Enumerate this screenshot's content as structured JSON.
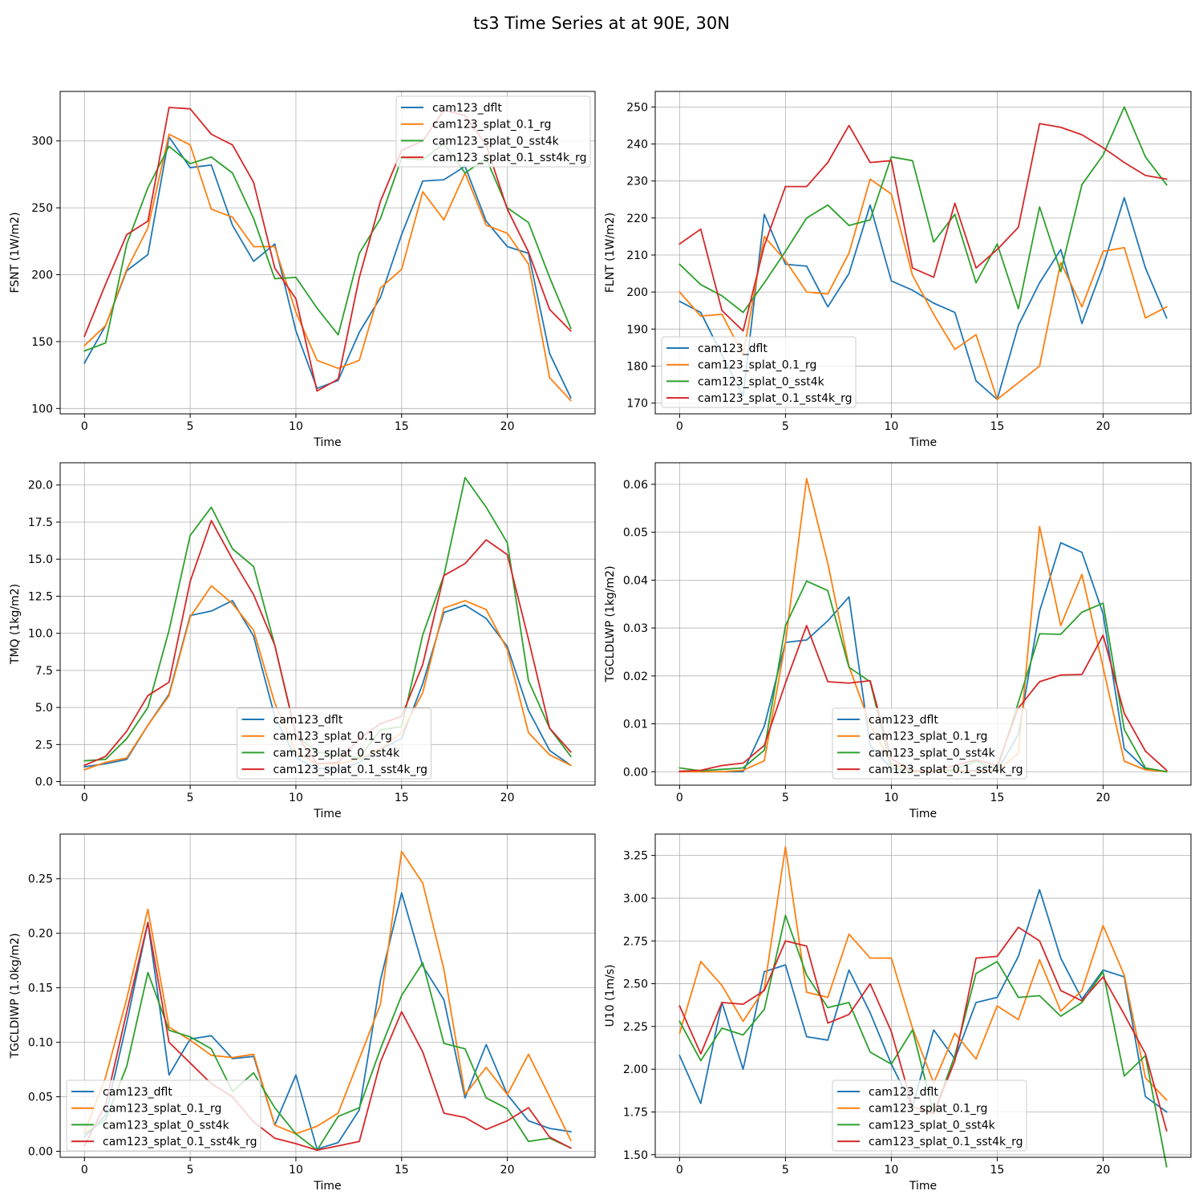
{
  "suptitle": "ts3 Time Series at at 90E, 30N",
  "series_names": [
    "cam123_dflt",
    "cam123_splat_0.1_rg",
    "cam123_splat_0_sst4k",
    "cam123_splat_0.1_sst4k_rg"
  ],
  "colors": [
    "#1f77b4",
    "#ff7f0e",
    "#2ca02c",
    "#d62728"
  ],
  "chart_data": [
    {
      "type": "line",
      "id": "fsnt",
      "title": "",
      "xlabel": "Time",
      "ylabel": "FSNT (1W/m2)",
      "xlim": [
        -1.15,
        24.15
      ],
      "ylim": [
        337,
        96
      ],
      "xticks": [
        0,
        5,
        10,
        15,
        20
      ],
      "yticks": [
        100,
        150,
        200,
        250,
        300
      ],
      "ytick_labels": [
        "100",
        "150",
        "200",
        "250",
        "300"
      ],
      "legend_loc": "upper right",
      "x": [
        0,
        1,
        2,
        3,
        4,
        5,
        6,
        7,
        8,
        9,
        10,
        11,
        12,
        13,
        14,
        15,
        16,
        17,
        18,
        19,
        20,
        21,
        22,
        23
      ],
      "series": [
        {
          "name": "cam123_dflt",
          "values": [
            134,
            162,
            203,
            215,
            303,
            280,
            282,
            237,
            210,
            223,
            158,
            115,
            121,
            157,
            183,
            230,
            270,
            271,
            281,
            240,
            221,
            216,
            141,
            108
          ]
        },
        {
          "name": "cam123_splat_0.1_rg",
          "values": [
            147,
            162,
            204,
            235,
            305,
            297,
            249,
            243,
            221,
            221,
            172,
            136,
            130,
            136,
            190,
            204,
            262,
            241,
            276,
            237,
            231,
            208,
            123,
            106
          ]
        },
        {
          "name": "cam123_splat_0_sst4k",
          "values": [
            143,
            149,
            223,
            265,
            296,
            283,
            288,
            276,
            242,
            197,
            198,
            175,
            155,
            216,
            242,
            287,
            286,
            298,
            276,
            287,
            250,
            239,
            198,
            160
          ]
        },
        {
          "name": "cam123_splat_0.1_sst4k_rg",
          "values": [
            154,
            193,
            230,
            240,
            325,
            324,
            305,
            297,
            269,
            205,
            182,
            113,
            122,
            198,
            255,
            293,
            300,
            323,
            319,
            297,
            249,
            217,
            174,
            158
          ]
        }
      ]
    },
    {
      "type": "line",
      "id": "flnt",
      "title": "",
      "xlabel": "Time",
      "ylabel": "FLNT (1W/m2)",
      "xlim": [
        -1.15,
        24.15
      ],
      "ylim": [
        254.2,
        167.1
      ],
      "xticks": [
        0,
        5,
        10,
        15,
        20
      ],
      "yticks": [
        170,
        180,
        190,
        200,
        210,
        220,
        230,
        240,
        250
      ],
      "ytick_labels": [
        "170",
        "180",
        "190",
        "200",
        "210",
        "220",
        "230",
        "240",
        "250"
      ],
      "legend_loc": "lower left",
      "x": [
        0,
        1,
        2,
        3,
        4,
        5,
        6,
        7,
        8,
        9,
        10,
        11,
        12,
        13,
        14,
        15,
        16,
        17,
        18,
        19,
        20,
        21,
        22,
        23
      ],
      "series": [
        {
          "name": "cam123_dflt",
          "values": [
            197.5,
            194.5,
            183,
            172,
            221,
            207.5,
            207,
            196,
            205,
            223.5,
            203,
            200.5,
            197,
            194.5,
            176,
            171,
            191,
            202.5,
            211.5,
            191.5,
            207,
            225.5,
            206.5,
            193
          ]
        },
        {
          "name": "cam123_splat_0.1_rg",
          "values": [
            200,
            193.5,
            194,
            183,
            215,
            208.5,
            200,
            199.5,
            210.5,
            230.5,
            226.5,
            204.5,
            194,
            184.5,
            188.5,
            171,
            175.5,
            180,
            208,
            196,
            211,
            212,
            193,
            196
          ]
        },
        {
          "name": "cam123_splat_0_sst4k",
          "values": [
            207.5,
            202,
            199,
            194.5,
            202.5,
            211,
            220,
            223.5,
            218,
            219.5,
            236.5,
            235.5,
            213.5,
            221,
            202.5,
            213,
            195.5,
            223,
            205.5,
            229,
            237,
            250,
            236.5,
            229
          ]
        },
        {
          "name": "cam123_splat_0.1_sst4k_rg",
          "values": [
            213,
            217,
            195,
            189.5,
            212.5,
            228.5,
            228.5,
            235,
            245,
            235,
            235.5,
            206.5,
            204,
            224,
            206.5,
            211.5,
            217.5,
            245.5,
            244.5,
            242.5,
            239,
            235,
            231.5,
            230.5
          ]
        }
      ]
    },
    {
      "type": "line",
      "id": "tmq",
      "title": "",
      "xlabel": "Time",
      "ylabel": "TMQ (1kg/m2)",
      "xlim": [
        -1.15,
        24.15
      ],
      "ylim": [
        21.5,
        -0.24
      ],
      "xticks": [
        0,
        5,
        10,
        15,
        20
      ],
      "yticks": [
        0,
        2.5,
        5,
        7.5,
        10,
        12.5,
        15,
        17.5,
        20
      ],
      "ytick_labels": [
        "0.0",
        "2.5",
        "5.0",
        "7.5",
        "10.0",
        "12.5",
        "15.0",
        "17.5",
        "20.0"
      ],
      "legend_loc": "lower center",
      "x": [
        0,
        1,
        2,
        3,
        4,
        5,
        6,
        7,
        8,
        9,
        10,
        11,
        12,
        13,
        14,
        15,
        16,
        17,
        18,
        19,
        20,
        21,
        22,
        23
      ],
      "series": [
        {
          "name": "cam123_dflt",
          "values": [
            1.0,
            1.2,
            1.5,
            3.8,
            5.9,
            11.2,
            11.5,
            12.2,
            9.8,
            4.4,
            1.6,
            0.9,
            0.8,
            1.3,
            2.2,
            2.9,
            6.6,
            11.4,
            11.9,
            11.0,
            9.1,
            4.8,
            2.1,
            1.1
          ]
        },
        {
          "name": "cam123_splat_0.1_rg",
          "values": [
            0.8,
            1.3,
            1.6,
            3.8,
            5.8,
            11.1,
            13.2,
            12.0,
            10.2,
            5.3,
            2.0,
            1.2,
            1.2,
            1.5,
            2.2,
            3.3,
            6.0,
            11.7,
            12.2,
            11.6,
            8.9,
            3.3,
            1.8,
            1.1
          ]
        },
        {
          "name": "cam123_splat_0_sst4k",
          "values": [
            1.4,
            1.5,
            2.9,
            5.0,
            10.2,
            16.6,
            18.5,
            15.7,
            14.5,
            9.2,
            3.1,
            2.0,
            1.8,
            1.6,
            3.5,
            3.7,
            9.9,
            13.9,
            20.5,
            18.5,
            16.1,
            6.8,
            3.6,
            1.7
          ]
        },
        {
          "name": "cam123_splat_0.1_sst4k_rg",
          "values": [
            1.1,
            1.7,
            3.4,
            5.8,
            6.7,
            13.5,
            17.6,
            15.0,
            12.6,
            9.2,
            3.2,
            1.2,
            1.3,
            2.9,
            3.9,
            4.4,
            7.9,
            13.9,
            14.7,
            16.3,
            15.3,
            9.6,
            3.6,
            2.0
          ]
        }
      ]
    },
    {
      "type": "line",
      "id": "tgcldlwp",
      "title": "",
      "xlabel": "Time",
      "ylabel": "TGCLDLWP (1kg/m2)",
      "xlim": [
        -1.15,
        24.15
      ],
      "ylim": [
        0.0645,
        -0.0028
      ],
      "xticks": [
        0,
        5,
        10,
        15,
        20
      ],
      "yticks": [
        0,
        0.01,
        0.02,
        0.03,
        0.04,
        0.05,
        0.06
      ],
      "ytick_labels": [
        "0.00",
        "0.01",
        "0.02",
        "0.03",
        "0.04",
        "0.05",
        "0.06"
      ],
      "legend_loc": "lower center",
      "x": [
        0,
        1,
        2,
        3,
        4,
        5,
        6,
        7,
        8,
        9,
        10,
        11,
        12,
        13,
        14,
        15,
        16,
        17,
        18,
        19,
        20,
        21,
        22,
        23
      ],
      "series": [
        {
          "name": "cam123_dflt",
          "values": [
            0.0,
            0.0,
            0.0,
            0.0,
            0.0095,
            0.027,
            0.0275,
            0.0315,
            0.0365,
            0.0055,
            0.0007,
            0.0002,
            0.0,
            0.0002,
            0.0003,
            0.0002,
            0.0078,
            0.0335,
            0.0478,
            0.0458,
            0.033,
            0.0048,
            0.0006,
            0.0
          ]
        },
        {
          "name": "cam123_splat_0.1_rg",
          "values": [
            0.0,
            0.0,
            0.0,
            0.0003,
            0.0023,
            0.027,
            0.0612,
            0.0435,
            0.022,
            0.0098,
            0.0018,
            0.0,
            0.0,
            0.0003,
            0.0,
            0.0003,
            0.0038,
            0.0512,
            0.0305,
            0.0412,
            0.0218,
            0.0022,
            0.0004,
            0.0
          ]
        },
        {
          "name": "cam123_splat_0_sst4k",
          "values": [
            0.0008,
            0.0002,
            0.0005,
            0.0008,
            0.0045,
            0.0305,
            0.0398,
            0.0378,
            0.0218,
            0.0188,
            0.0007,
            0.0002,
            0.0002,
            0.0004,
            0.0022,
            0.0005,
            0.0145,
            0.0288,
            0.0287,
            0.0333,
            0.0352,
            0.0088,
            0.0008,
            0.0
          ]
        },
        {
          "name": "cam123_splat_0.1_sst4k_rg",
          "values": [
            0.0001,
            0.0003,
            0.0013,
            0.0018,
            0.0055,
            0.0185,
            0.0305,
            0.0188,
            0.0185,
            0.019,
            0.0027,
            0.0002,
            0.0001,
            0.0013,
            0.0025,
            0.0013,
            0.0133,
            0.0188,
            0.0202,
            0.0203,
            0.0285,
            0.0122,
            0.0043,
            0.0003
          ]
        }
      ]
    },
    {
      "type": "line",
      "id": "tgcldiwp",
      "title": "",
      "xlabel": "Time",
      "ylabel": "TGCLDIWP (1.0kg/m2)",
      "xlim": [
        -1.15,
        24.15
      ],
      "ylim": [
        0.291,
        -0.0055
      ],
      "xticks": [
        0,
        5,
        10,
        15,
        20
      ],
      "yticks": [
        0,
        0.05,
        0.1,
        0.15,
        0.2,
        0.25
      ],
      "ytick_labels": [
        "0.00",
        "0.05",
        "0.10",
        "0.15",
        "0.20",
        "0.25"
      ],
      "legend_loc": "lower left",
      "x": [
        0,
        1,
        2,
        3,
        4,
        5,
        6,
        7,
        8,
        9,
        10,
        11,
        12,
        13,
        14,
        15,
        16,
        17,
        18,
        19,
        20,
        21,
        22,
        23
      ],
      "series": [
        {
          "name": "cam123_dflt",
          "values": [
            0.013,
            0.033,
            0.118,
            0.21,
            0.07,
            0.103,
            0.106,
            0.085,
            0.087,
            0.024,
            0.07,
            0.002,
            0.008,
            0.038,
            0.157,
            0.237,
            0.17,
            0.139,
            0.049,
            0.098,
            0.052,
            0.028,
            0.021,
            0.018
          ]
        },
        {
          "name": "cam123_splat_0.1_rg",
          "values": [
            0.017,
            0.068,
            0.14,
            0.222,
            0.114,
            0.102,
            0.088,
            0.086,
            0.089,
            0.024,
            0.016,
            0.023,
            0.035,
            0.085,
            0.135,
            0.275,
            0.246,
            0.167,
            0.052,
            0.077,
            0.052,
            0.089,
            0.05,
            0.01
          ]
        },
        {
          "name": "cam123_splat_0_sst4k",
          "values": [
            0.016,
            0.029,
            0.078,
            0.164,
            0.111,
            0.105,
            0.094,
            0.055,
            0.072,
            0.04,
            0.016,
            0.001,
            0.032,
            0.04,
            0.094,
            0.143,
            0.173,
            0.099,
            0.094,
            0.049,
            0.039,
            0.009,
            0.012,
            0.003
          ]
        },
        {
          "name": "cam123_splat_0.1_sst4k_rg",
          "values": [
            0.005,
            0.043,
            0.128,
            0.21,
            0.1,
            0.081,
            0.062,
            0.05,
            0.027,
            0.012,
            0.007,
            0.001,
            0.005,
            0.009,
            0.082,
            0.128,
            0.091,
            0.035,
            0.031,
            0.02,
            0.028,
            0.04,
            0.013,
            0.003
          ]
        }
      ]
    },
    {
      "type": "line",
      "id": "u10",
      "title": "",
      "xlabel": "Time",
      "ylabel": "U10 (1m/s)",
      "xlim": [
        -1.15,
        24.15
      ],
      "ylim": [
        3.375,
        1.485
      ],
      "xticks": [
        0,
        5,
        10,
        15,
        20
      ],
      "yticks": [
        1.5,
        1.75,
        2.0,
        2.25,
        2.5,
        2.75,
        3.0,
        3.25
      ],
      "ytick_labels": [
        "1.50",
        "1.75",
        "2.00",
        "2.25",
        "2.50",
        "2.75",
        "3.00",
        "3.25"
      ],
      "legend_loc": "lower center",
      "x": [
        0,
        1,
        2,
        3,
        4,
        5,
        6,
        7,
        8,
        9,
        10,
        11,
        12,
        13,
        14,
        15,
        16,
        17,
        18,
        19,
        20,
        21,
        22,
        23
      ],
      "series": [
        {
          "name": "cam123_dflt",
          "values": [
            2.08,
            1.8,
            2.39,
            2.0,
            2.57,
            2.61,
            2.19,
            2.17,
            2.58,
            2.33,
            2.03,
            1.78,
            2.23,
            2.06,
            2.39,
            2.42,
            2.66,
            3.05,
            2.65,
            2.41,
            2.58,
            2.54,
            1.84,
            1.75
          ]
        },
        {
          "name": "cam123_splat_0.1_rg",
          "values": [
            2.21,
            2.63,
            2.49,
            2.28,
            2.47,
            3.3,
            2.45,
            2.42,
            2.79,
            2.65,
            2.65,
            2.24,
            1.92,
            2.21,
            2.06,
            2.37,
            2.29,
            2.64,
            2.34,
            2.46,
            2.84,
            2.55,
            1.95,
            1.82
          ]
        },
        {
          "name": "cam123_splat_0_sst4k",
          "values": [
            2.28,
            2.05,
            2.24,
            2.2,
            2.35,
            2.9,
            2.55,
            2.36,
            2.39,
            2.1,
            2.03,
            2.23,
            1.74,
            2.08,
            2.56,
            2.63,
            2.42,
            2.43,
            2.31,
            2.39,
            2.57,
            1.96,
            2.08,
            1.43
          ]
        },
        {
          "name": "cam123_splat_0.1_sst4k_rg",
          "values": [
            2.37,
            2.09,
            2.39,
            2.38,
            2.46,
            2.75,
            2.72,
            2.27,
            2.32,
            2.5,
            2.22,
            1.78,
            1.74,
            2.05,
            2.65,
            2.66,
            2.83,
            2.75,
            2.46,
            2.4,
            2.54,
            2.32,
            2.09,
            1.64
          ]
        }
      ]
    }
  ]
}
